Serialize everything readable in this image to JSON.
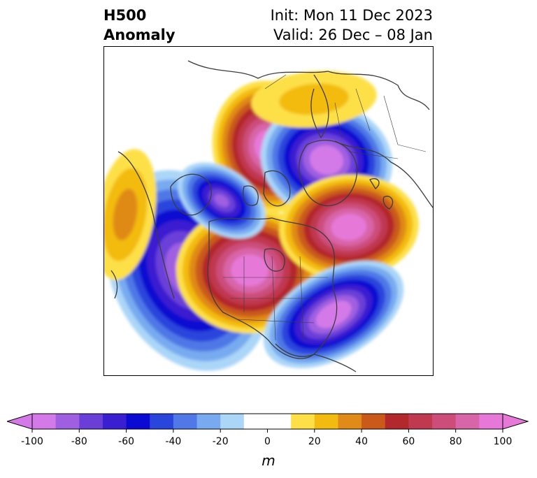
{
  "title": {
    "left_line1": "H500",
    "left_line2": "Anomaly",
    "right_line1": "Init: Mon 11 Dec 2023",
    "right_line2": "Valid: 26 Dec – 08 Jan"
  },
  "colorbar": {
    "unit": "m",
    "tick_labels": [
      "-100",
      "-80",
      "-60",
      "-40",
      "-20",
      "0",
      "20",
      "40",
      "60",
      "80",
      "100"
    ],
    "bins": [
      {
        "from": -100,
        "to": -90,
        "color": "#d37ae8"
      },
      {
        "from": -90,
        "to": -80,
        "color": "#9f5fe0"
      },
      {
        "from": -80,
        "to": -70,
        "color": "#6a3fd8"
      },
      {
        "from": -70,
        "to": -60,
        "color": "#3a1fd0"
      },
      {
        "from": -60,
        "to": -50,
        "color": "#0a0ad2"
      },
      {
        "from": -50,
        "to": -40,
        "color": "#2a45dc"
      },
      {
        "from": -40,
        "to": -30,
        "color": "#5078e6"
      },
      {
        "from": -30,
        "to": -20,
        "color": "#78aaf0"
      },
      {
        "from": -20,
        "to": -10,
        "color": "#abd6f8"
      },
      {
        "from": -10,
        "to": 10,
        "color": "#ffffff"
      },
      {
        "from": 10,
        "to": 20,
        "color": "#fde047"
      },
      {
        "from": 20,
        "to": 30,
        "color": "#f3bb10"
      },
      {
        "from": 30,
        "to": 40,
        "color": "#e08a18"
      },
      {
        "from": 40,
        "to": 50,
        "color": "#c95a1a"
      },
      {
        "from": 50,
        "to": 60,
        "color": "#b3282a"
      },
      {
        "from": 60,
        "to": 70,
        "color": "#c0394f"
      },
      {
        "from": 70,
        "to": 80,
        "color": "#cc4d7a"
      },
      {
        "from": 80,
        "to": 90,
        "color": "#d865a8"
      },
      {
        "from": 90,
        "to": 100,
        "color": "#e678d8"
      }
    ],
    "extend_low_color": "#d37ae8",
    "extend_high_color": "#e678d8"
  },
  "map": {
    "projection": "polar stereographic (North Pole)",
    "coastline_color": "#3c3c3c",
    "anomaly_centers": [
      {
        "sign": "positive",
        "location": "Kara Sea / Barents",
        "peak": 100
      },
      {
        "sign": "negative",
        "location": "Greenland",
        "peak": -100
      },
      {
        "sign": "negative",
        "location": "East Siberia / Bering",
        "peak": -90
      },
      {
        "sign": "positive",
        "location": "Eastern Canada / Hudson Bay",
        "peak": 100
      },
      {
        "sign": "positive",
        "location": "North Pacific / Alaska",
        "peak": 100
      },
      {
        "sign": "negative",
        "location": "Central North Pacific",
        "peak": -100
      },
      {
        "sign": "negative",
        "location": "Western Europe / North Atlantic",
        "peak": -80
      },
      {
        "sign": "positive",
        "location": "East Asia (weak)",
        "peak": 30
      },
      {
        "sign": "positive",
        "location": "Northern Russia (weak)",
        "peak": 20
      }
    ]
  }
}
